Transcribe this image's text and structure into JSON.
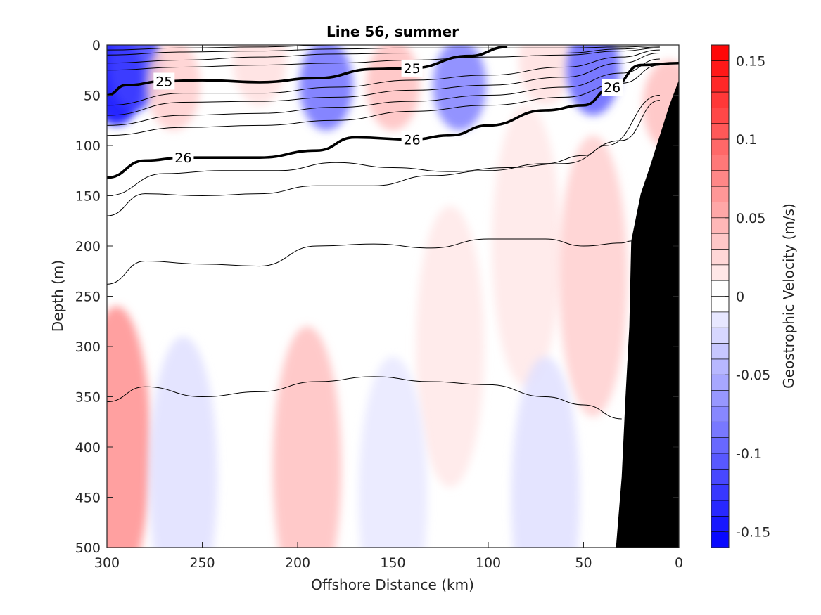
{
  "chart_data": {
    "type": "contour",
    "title": "Line 56, summer",
    "xlabel": "Offshore Distance (km)",
    "ylabel": "Depth (m)",
    "xlim": [
      300,
      0
    ],
    "ylim": [
      0,
      500
    ],
    "x_reversed": true,
    "y_reversed": true,
    "xticks": [
      300,
      250,
      200,
      150,
      100,
      50,
      0
    ],
    "yticks": [
      0,
      50,
      100,
      150,
      200,
      250,
      300,
      350,
      400,
      450,
      500
    ],
    "colorbar": {
      "label": "Geostrophic Velocity (m/s)",
      "range": [
        -0.16,
        0.16
      ],
      "ticks": [
        0.15,
        0.1,
        0.05,
        0,
        -0.05,
        -0.1,
        -0.15
      ],
      "tick_labels": [
        "0.15",
        "0.1",
        "0.05",
        "0",
        "-0.05",
        "-0.1",
        "-0.15"
      ],
      "levels": 32,
      "colors": {
        "negative": "#0000ff",
        "zero": "#ffffff",
        "positive": "#ff0000"
      }
    },
    "velocity_cores": [
      {
        "x": 295,
        "depth": 35,
        "v": -0.16
      },
      {
        "x": 285,
        "depth": 20,
        "v": -0.12
      },
      {
        "x": 265,
        "depth": 40,
        "v": 0.03
      },
      {
        "x": 220,
        "depth": 15,
        "v": 0.02
      },
      {
        "x": 185,
        "depth": 40,
        "v": -0.09
      },
      {
        "x": 150,
        "depth": 40,
        "v": 0.04
      },
      {
        "x": 115,
        "depth": 40,
        "v": -0.08
      },
      {
        "x": 70,
        "depth": 15,
        "v": 0.02
      },
      {
        "x": 45,
        "depth": 25,
        "v": -0.1
      },
      {
        "x": 5,
        "depth": 60,
        "v": 0.04
      },
      {
        "x": 295,
        "depth": 400,
        "v": 0.07
      },
      {
        "x": 195,
        "depth": 420,
        "v": 0.04
      },
      {
        "x": 120,
        "depth": 300,
        "v": 0.015
      },
      {
        "x": 80,
        "depth": 200,
        "v": 0.015
      },
      {
        "x": 45,
        "depth": 230,
        "v": 0.03
      },
      {
        "x": 260,
        "depth": 430,
        "v": -0.02
      },
      {
        "x": 150,
        "depth": 450,
        "v": -0.015
      },
      {
        "x": 70,
        "depth": 450,
        "v": -0.02
      }
    ],
    "isopycnals": [
      {
        "value": "",
        "bold": false,
        "x": [
          300,
          260,
          220,
          180,
          140,
          100,
          60,
          30,
          10
        ],
        "depth": [
          5,
          3,
          2,
          0,
          0,
          0,
          0,
          0,
          0
        ]
      },
      {
        "value": "",
        "bold": false,
        "x": [
          300,
          260,
          220,
          180,
          140,
          100,
          60,
          30,
          10
        ],
        "depth": [
          10,
          7,
          6,
          4,
          3,
          3,
          3,
          2,
          1
        ]
      },
      {
        "value": "",
        "bold": false,
        "x": [
          300,
          260,
          220,
          180,
          140,
          100,
          60,
          30,
          10
        ],
        "depth": [
          18,
          15,
          12,
          9,
          8,
          8,
          8,
          4,
          2
        ]
      },
      {
        "value": "",
        "bold": false,
        "x": [
          300,
          260,
          220,
          180,
          140,
          100,
          60,
          30,
          10
        ],
        "depth": [
          25,
          22,
          20,
          18,
          15,
          12,
          10,
          6,
          3
        ]
      },
      {
        "value": "25",
        "bold": true,
        "x": [
          300,
          290,
          270,
          250,
          220,
          190,
          160,
          140,
          110,
          90
        ],
        "depth": [
          50,
          40,
          36,
          35,
          37,
          33,
          24,
          23,
          11,
          2
        ]
      },
      {
        "value": "",
        "bold": false,
        "x": [
          300,
          260,
          220,
          180,
          140,
          100,
          60,
          30,
          10
        ],
        "depth": [
          60,
          48,
          48,
          42,
          35,
          30,
          22,
          12,
          5
        ]
      },
      {
        "value": "",
        "bold": false,
        "x": [
          300,
          260,
          220,
          180,
          140,
          100,
          60,
          30,
          10
        ],
        "depth": [
          70,
          57,
          56,
          52,
          45,
          40,
          32,
          18,
          8
        ]
      },
      {
        "value": "",
        "bold": false,
        "x": [
          300,
          260,
          220,
          180,
          140,
          100,
          60,
          30,
          10
        ],
        "depth": [
          80,
          70,
          68,
          62,
          56,
          50,
          42,
          28,
          14
        ]
      },
      {
        "value": "",
        "bold": false,
        "x": [
          300,
          260,
          220,
          180,
          140,
          100,
          60,
          30,
          10
        ],
        "depth": [
          90,
          82,
          80,
          75,
          66,
          60,
          52,
          38,
          20
        ]
      },
      {
        "value": "26",
        "bold": true,
        "x": [
          300,
          280,
          260,
          240,
          220,
          190,
          170,
          140,
          120,
          100,
          70,
          50,
          35,
          20,
          0
        ],
        "depth": [
          132,
          115,
          112,
          112,
          112,
          105,
          92,
          94,
          90,
          80,
          65,
          60,
          42,
          20,
          18
        ]
      },
      {
        "value": "",
        "bold": false,
        "x": [
          300,
          270,
          240,
          210,
          180,
          150,
          120,
          90,
          60,
          30,
          10
        ],
        "depth": [
          150,
          128,
          125,
          125,
          117,
          122,
          126,
          122,
          118,
          95,
          55
        ]
      },
      {
        "value": "",
        "bold": false,
        "x": [
          300,
          280,
          250,
          220,
          190,
          160,
          130,
          100,
          70,
          50,
          38,
          10
        ],
        "depth": [
          170,
          148,
          150,
          148,
          140,
          140,
          130,
          125,
          118,
          110,
          100,
          50
        ]
      },
      {
        "value": "",
        "bold": false,
        "x": [
          300,
          280,
          250,
          220,
          190,
          160,
          130,
          100,
          70,
          50,
          30,
          25
        ],
        "depth": [
          238,
          215,
          218,
          220,
          200,
          198,
          202,
          193,
          193,
          200,
          197,
          195
        ]
      },
      {
        "value": "",
        "bold": false,
        "x": [
          300,
          280,
          250,
          220,
          190,
          160,
          130,
          100,
          70,
          50,
          30
        ],
        "depth": [
          355,
          340,
          350,
          345,
          335,
          330,
          335,
          338,
          350,
          358,
          372
        ]
      }
    ],
    "bathymetry": {
      "x": [
        33,
        30,
        28,
        26,
        25,
        20,
        15,
        10,
        5,
        0
      ],
      "depth": [
        500,
        430,
        350,
        280,
        195,
        148,
        120,
        90,
        60,
        35
      ]
    }
  }
}
